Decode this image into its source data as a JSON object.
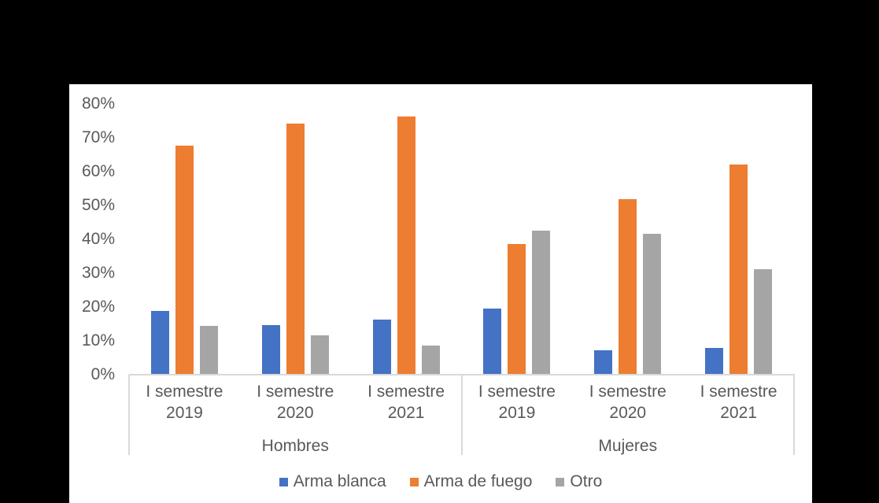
{
  "colors": {
    "page_background": "#000000",
    "card_background": "#ffffff",
    "text": "#595959",
    "axis_line": "#D9D9D9"
  },
  "chart_data": {
    "type": "bar",
    "title": "",
    "unit": "percent",
    "gridlines": false,
    "legend_position": "bottom",
    "y_axis": {
      "min": 0,
      "max": 80,
      "step": 10,
      "tick_labels": [
        "0%",
        "10%",
        "20%",
        "30%",
        "40%",
        "50%",
        "60%",
        "70%",
        "80%"
      ]
    },
    "groups": [
      {
        "label": "Hombres",
        "categories": [
          "I semestre\n2019",
          "I semestre\n2020",
          "I semestre\n2021"
        ]
      },
      {
        "label": "Mujeres",
        "categories": [
          "I semestre\n2019",
          "I semestre\n2020",
          "I semestre\n2021"
        ]
      }
    ],
    "slot_order": [
      "Hombres I semestre 2019",
      "Hombres I semestre 2020",
      "Hombres I semestre 2021",
      "Mujeres I semestre 2019",
      "Mujeres I semestre 2020",
      "Mujeres I semestre 2021"
    ],
    "series": [
      {
        "name": "Arma blanca",
        "color": "#4472C4",
        "values": [
          18.6,
          14.4,
          16.1,
          19.3,
          6.9,
          7.7
        ]
      },
      {
        "name": "Arma de fuego",
        "color": "#ED7D31",
        "values": [
          67.5,
          74.0,
          76.1,
          38.5,
          51.7,
          61.9
        ]
      },
      {
        "name": "Otro",
        "color": "#A5A5A5",
        "values": [
          14.1,
          11.5,
          8.4,
          42.5,
          41.4,
          30.9
        ]
      }
    ]
  }
}
